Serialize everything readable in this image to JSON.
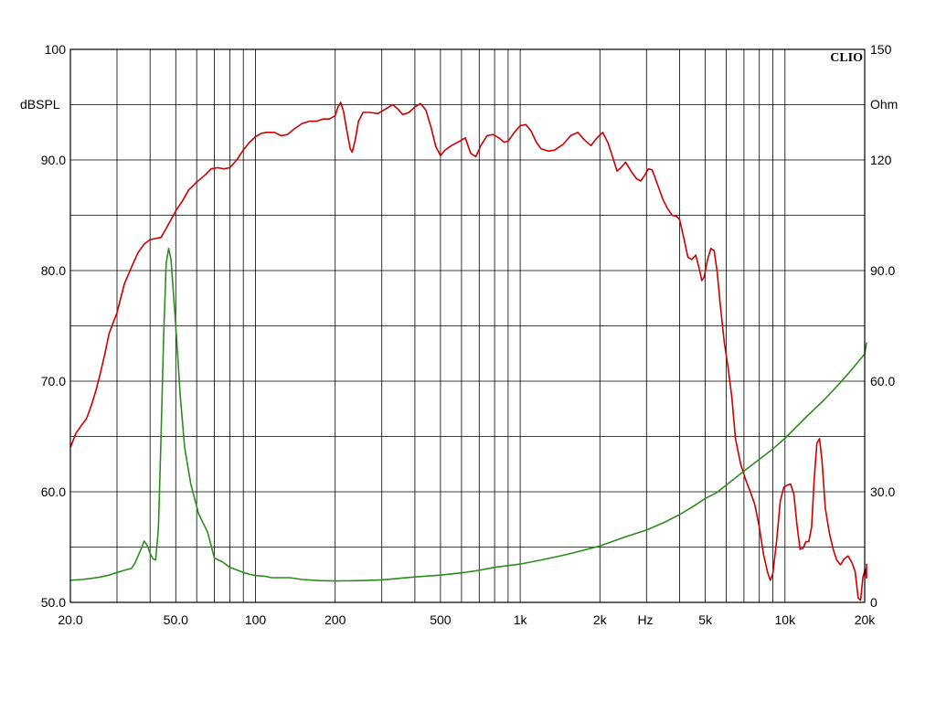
{
  "chart_data": {
    "type": "line",
    "brand": "CLIO",
    "x_scale": "log",
    "xlim": [
      20,
      20000
    ],
    "x_unit_label": "Hz",
    "x_tick_labels": [
      {
        "value": 20,
        "label": "20.0"
      },
      {
        "value": 50,
        "label": "50.0"
      },
      {
        "value": 100,
        "label": "100"
      },
      {
        "value": 200,
        "label": "200"
      },
      {
        "value": 500,
        "label": "500"
      },
      {
        "value": 1000,
        "label": "1k"
      },
      {
        "value": 2000,
        "label": "2k"
      },
      {
        "value": 5000,
        "label": "5k"
      },
      {
        "value": 10000,
        "label": "10k"
      },
      {
        "value": 20000,
        "label": "20k"
      }
    ],
    "y_left": {
      "unit_label": "dBSPL",
      "ylim": [
        50,
        100
      ],
      "tick_labels": [
        {
          "value": 100,
          "label": "100"
        },
        {
          "value": 90,
          "label": "90.0"
        },
        {
          "value": 80,
          "label": "80.0"
        },
        {
          "value": 70,
          "label": "70.0"
        },
        {
          "value": 60,
          "label": "60.0"
        },
        {
          "value": 50,
          "label": "50.0"
        }
      ]
    },
    "y_right": {
      "unit_label": "Ohm",
      "ylim": [
        0,
        150
      ],
      "tick_labels": [
        {
          "value": 150,
          "label": "150"
        },
        {
          "value": 120,
          "label": "120"
        },
        {
          "value": 90,
          "label": "90.0"
        },
        {
          "value": 60,
          "label": "60.0"
        },
        {
          "value": 30,
          "label": "30.0"
        },
        {
          "value": 0,
          "label": "0"
        }
      ]
    },
    "grid": true,
    "series": [
      {
        "axis": "left",
        "color": "#cc0000",
        "points": [
          [
            20,
            64.0
          ],
          [
            21,
            65.3
          ],
          [
            22,
            66.0
          ],
          [
            23,
            66.6
          ],
          [
            24,
            67.8
          ],
          [
            25,
            69.2
          ],
          [
            26,
            70.8
          ],
          [
            27,
            72.5
          ],
          [
            28,
            74.3
          ],
          [
            30,
            76.2
          ],
          [
            32,
            78.8
          ],
          [
            34,
            80.3
          ],
          [
            36,
            81.6
          ],
          [
            38,
            82.4
          ],
          [
            40,
            82.8
          ],
          [
            42,
            82.9
          ],
          [
            44,
            83.0
          ],
          [
            46,
            83.8
          ],
          [
            48,
            84.6
          ],
          [
            50,
            85.4
          ],
          [
            53,
            86.3
          ],
          [
            56,
            87.3
          ],
          [
            60,
            88.0
          ],
          [
            65,
            88.7
          ],
          [
            68,
            89.2
          ],
          [
            72,
            89.3
          ],
          [
            76,
            89.2
          ],
          [
            80,
            89.3
          ],
          [
            85,
            90.0
          ],
          [
            90,
            90.9
          ],
          [
            95,
            91.6
          ],
          [
            100,
            92.1
          ],
          [
            105,
            92.4
          ],
          [
            110,
            92.5
          ],
          [
            118,
            92.5
          ],
          [
            125,
            92.2
          ],
          [
            132,
            92.3
          ],
          [
            140,
            92.8
          ],
          [
            150,
            93.3
          ],
          [
            160,
            93.5
          ],
          [
            170,
            93.5
          ],
          [
            180,
            93.7
          ],
          [
            190,
            93.7
          ],
          [
            200,
            94.0
          ],
          [
            205,
            94.8
          ],
          [
            210,
            95.2
          ],
          [
            215,
            94.4
          ],
          [
            222,
            92.5
          ],
          [
            228,
            91.0
          ],
          [
            232,
            90.7
          ],
          [
            238,
            91.8
          ],
          [
            245,
            93.5
          ],
          [
            255,
            94.3
          ],
          [
            270,
            94.3
          ],
          [
            290,
            94.2
          ],
          [
            310,
            94.6
          ],
          [
            330,
            95.0
          ],
          [
            345,
            94.6
          ],
          [
            360,
            94.1
          ],
          [
            380,
            94.3
          ],
          [
            400,
            94.8
          ],
          [
            420,
            95.1
          ],
          [
            440,
            94.5
          ],
          [
            460,
            93.0
          ],
          [
            480,
            91.2
          ],
          [
            500,
            90.4
          ],
          [
            520,
            90.9
          ],
          [
            550,
            91.3
          ],
          [
            590,
            91.7
          ],
          [
            620,
            92.0
          ],
          [
            650,
            90.6
          ],
          [
            680,
            90.3
          ],
          [
            710,
            91.3
          ],
          [
            750,
            92.2
          ],
          [
            790,
            92.3
          ],
          [
            830,
            92.0
          ],
          [
            870,
            91.6
          ],
          [
            900,
            91.7
          ],
          [
            950,
            92.5
          ],
          [
            1000,
            93.1
          ],
          [
            1050,
            93.2
          ],
          [
            1100,
            92.6
          ],
          [
            1150,
            91.6
          ],
          [
            1200,
            91.0
          ],
          [
            1280,
            90.8
          ],
          [
            1350,
            90.9
          ],
          [
            1450,
            91.4
          ],
          [
            1550,
            92.2
          ],
          [
            1650,
            92.5
          ],
          [
            1750,
            91.8
          ],
          [
            1850,
            91.3
          ],
          [
            1950,
            92.0
          ],
          [
            2050,
            92.5
          ],
          [
            2150,
            91.5
          ],
          [
            2250,
            90.0
          ],
          [
            2320,
            89.0
          ],
          [
            2400,
            89.3
          ],
          [
            2500,
            89.8
          ],
          [
            2620,
            89.0
          ],
          [
            2750,
            88.3
          ],
          [
            2850,
            88.1
          ],
          [
            2950,
            88.6
          ],
          [
            3050,
            89.2
          ],
          [
            3150,
            89.1
          ],
          [
            3300,
            87.8
          ],
          [
            3450,
            86.5
          ],
          [
            3600,
            85.6
          ],
          [
            3750,
            85.0
          ],
          [
            3900,
            84.9
          ],
          [
            4000,
            84.6
          ],
          [
            4150,
            82.9
          ],
          [
            4300,
            81.2
          ],
          [
            4450,
            81.0
          ],
          [
            4600,
            81.4
          ],
          [
            4750,
            80.1
          ],
          [
            4850,
            79.1
          ],
          [
            4950,
            79.4
          ],
          [
            5100,
            81.0
          ],
          [
            5250,
            82.0
          ],
          [
            5400,
            81.8
          ],
          [
            5550,
            79.8
          ],
          [
            5700,
            76.8
          ],
          [
            5900,
            73.5
          ],
          [
            6100,
            71.2
          ],
          [
            6300,
            68.5
          ],
          [
            6500,
            64.8
          ],
          [
            6800,
            62.5
          ],
          [
            7100,
            61.1
          ],
          [
            7400,
            60.0
          ],
          [
            7700,
            58.8
          ],
          [
            8000,
            56.8
          ],
          [
            8300,
            54.3
          ],
          [
            8600,
            52.7
          ],
          [
            8800,
            52.0
          ],
          [
            9000,
            52.6
          ],
          [
            9300,
            55.6
          ],
          [
            9600,
            59.2
          ],
          [
            9900,
            60.4
          ],
          [
            10200,
            60.6
          ],
          [
            10500,
            60.7
          ],
          [
            10800,
            59.8
          ],
          [
            11100,
            57.0
          ],
          [
            11400,
            54.8
          ],
          [
            11700,
            54.9
          ],
          [
            12000,
            55.5
          ],
          [
            12300,
            55.5
          ],
          [
            12600,
            56.8
          ],
          [
            12900,
            61.2
          ],
          [
            13200,
            64.4
          ],
          [
            13500,
            64.8
          ],
          [
            13800,
            62.8
          ],
          [
            14200,
            58.5
          ],
          [
            14700,
            56.3
          ],
          [
            15200,
            54.8
          ],
          [
            15700,
            53.8
          ],
          [
            16200,
            53.4
          ],
          [
            16700,
            53.9
          ],
          [
            17300,
            54.2
          ],
          [
            17900,
            53.6
          ],
          [
            18400,
            52.8
          ],
          [
            18900,
            50.4
          ],
          [
            19300,
            50.2
          ],
          [
            19700,
            52.3
          ],
          [
            20100,
            53.0
          ],
          [
            20500,
            52.2
          ],
          [
            20900,
            52.8
          ],
          [
            21400,
            53.5
          ]
        ]
      },
      {
        "axis": "right",
        "color": "#2e8b20",
        "points": [
          [
            20,
            6.0
          ],
          [
            22,
            6.2
          ],
          [
            24,
            6.5
          ],
          [
            26,
            6.9
          ],
          [
            28,
            7.4
          ],
          [
            30,
            8.1
          ],
          [
            32,
            8.7
          ],
          [
            34,
            9.2
          ],
          [
            35,
            10.5
          ],
          [
            36,
            12.5
          ],
          [
            37,
            14.5
          ],
          [
            38,
            16.6
          ],
          [
            39,
            15.5
          ],
          [
            40,
            13.3
          ],
          [
            41,
            11.8
          ],
          [
            42,
            11.5
          ],
          [
            43,
            20.0
          ],
          [
            44,
            45.0
          ],
          [
            45,
            72.0
          ],
          [
            46,
            92.0
          ],
          [
            47,
            96.0
          ],
          [
            48,
            93.0
          ],
          [
            50,
            75.0
          ],
          [
            52,
            56.0
          ],
          [
            54,
            42.0
          ],
          [
            57,
            32.0
          ],
          [
            61,
            24.0
          ],
          [
            66,
            19.0
          ],
          [
            70,
            12.0
          ],
          [
            75,
            11.0
          ],
          [
            80,
            9.5
          ],
          [
            85,
            8.8
          ],
          [
            90,
            8.1
          ],
          [
            95,
            7.6
          ],
          [
            100,
            7.3
          ],
          [
            108,
            7.1
          ],
          [
            115,
            6.7
          ],
          [
            125,
            6.7
          ],
          [
            135,
            6.7
          ],
          [
            150,
            6.2
          ],
          [
            175,
            5.9
          ],
          [
            200,
            5.8
          ],
          [
            250,
            5.9
          ],
          [
            300,
            6.1
          ],
          [
            400,
            6.9
          ],
          [
            500,
            7.4
          ],
          [
            600,
            8.0
          ],
          [
            700,
            8.7
          ],
          [
            800,
            9.5
          ],
          [
            1000,
            10.4
          ],
          [
            1200,
            11.5
          ],
          [
            1500,
            13.0
          ],
          [
            2000,
            15.3
          ],
          [
            2500,
            17.8
          ],
          [
            3000,
            19.6
          ],
          [
            3500,
            21.7
          ],
          [
            4000,
            23.8
          ],
          [
            4500,
            26.0
          ],
          [
            5000,
            28.2
          ],
          [
            5500,
            29.7
          ],
          [
            6000,
            31.8
          ],
          [
            7000,
            35.6
          ],
          [
            8000,
            38.8
          ],
          [
            9000,
            41.6
          ],
          [
            10000,
            44.5
          ],
          [
            11000,
            47.5
          ],
          [
            12000,
            50.2
          ],
          [
            14000,
            54.8
          ],
          [
            16000,
            59.2
          ],
          [
            18000,
            63.4
          ],
          [
            20000,
            67.4
          ],
          [
            21500,
            70.5
          ]
        ]
      }
    ]
  }
}
